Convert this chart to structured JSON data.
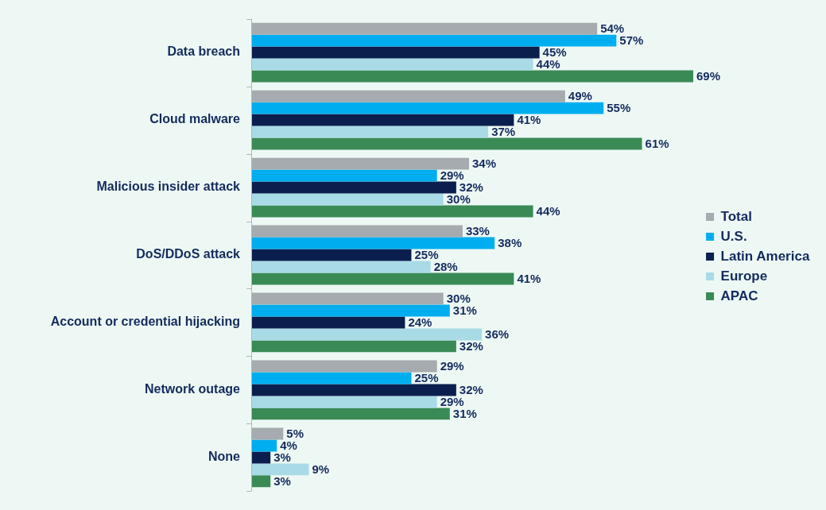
{
  "chart_data": {
    "type": "bar",
    "orientation": "horizontal",
    "categories": [
      "Data breach",
      "Cloud malware",
      "Malicious insider attack",
      "DoS/DDoS attack",
      "Account or credential hijacking",
      "Network outage",
      "None"
    ],
    "series": [
      {
        "name": "Total",
        "color": "#a5abae",
        "values": [
          54,
          49,
          34,
          33,
          30,
          29,
          5
        ],
        "value_labels": [
          "54%",
          "49%",
          "34%",
          "33%",
          "30%",
          "29%",
          "5%"
        ]
      },
      {
        "name": "U.S.",
        "color": "#00aeef",
        "values": [
          57,
          55,
          29,
          38,
          31,
          25,
          4
        ],
        "value_labels": [
          "57%",
          "55%",
          "29%",
          "38%",
          "31%",
          "25%",
          "4%"
        ]
      },
      {
        "name": "Latin America",
        "color": "#0b1f4f",
        "values": [
          45,
          41,
          32,
          25,
          24,
          32,
          3
        ],
        "value_labels": [
          "45%",
          "41%",
          "32%",
          "25%",
          "24%",
          "32%",
          "3%"
        ]
      },
      {
        "name": "Europe",
        "color": "#a9dbe7",
        "values": [
          44,
          37,
          30,
          28,
          36,
          29,
          9
        ],
        "value_labels": [
          "44%",
          "37%",
          "30%",
          "28%",
          "36%",
          "29%",
          "9%"
        ]
      },
      {
        "name": "APAC",
        "color": "#3a8a56",
        "values": [
          69,
          61,
          44,
          41,
          32,
          31,
          3
        ],
        "value_labels": [
          "69%",
          "61%",
          "44%",
          "41%",
          "32%",
          "31%",
          "3%"
        ]
      }
    ],
    "tick_labels": "y",
    "grid": false,
    "legend": "right"
  }
}
